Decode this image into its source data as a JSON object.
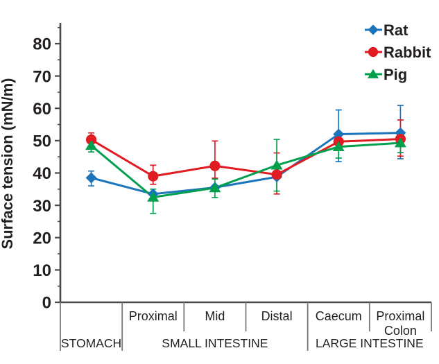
{
  "chart_data": {
    "type": "line",
    "title": "",
    "ylabel": "Surface tension (mN/m)",
    "ylim": [
      0,
      80
    ],
    "ytick_step": 10,
    "ytick_minor_step": 5,
    "grid": false,
    "legend_position": "top-right",
    "categories": [
      "Stomach",
      "Proximal",
      "Mid",
      "Distal",
      "Caecum",
      "Proximal Colon"
    ],
    "x_sub_labels": [
      "",
      "Proximal",
      "Mid",
      "Distal",
      "Caecum",
      "Proximal\nColon"
    ],
    "x_groups": [
      {
        "label": "STOMACH",
        "start": 0,
        "end": 1
      },
      {
        "label": "SMALL INTESTINE",
        "start": 1,
        "end": 4
      },
      {
        "label": "LARGE INTESTINE",
        "start": 4,
        "end": 6
      }
    ],
    "series": [
      {
        "name": "Rat",
        "color": "#1C75BB",
        "marker": "diamond",
        "values": [
          38.5,
          33.5,
          35.5,
          38.8,
          52.0,
          52.4
        ],
        "err_up": [
          2.1,
          0,
          0,
          0,
          7.5,
          8.5
        ],
        "err_down": [
          2.5,
          0,
          0,
          0,
          8.5,
          8.0
        ]
      },
      {
        "name": "Rabbit",
        "color": "#E11B22",
        "marker": "circle",
        "values": [
          50.3,
          39.0,
          42.2,
          39.5,
          49.7,
          50.5
        ],
        "err_up": [
          2.1,
          3.4,
          7.7,
          6.7,
          2.0,
          5.9
        ],
        "err_down": [
          2.0,
          2.5,
          3.8,
          6.0,
          2.0,
          5.3
        ]
      },
      {
        "name": "Pig",
        "color": "#00A04D",
        "marker": "triangle",
        "values": [
          48.5,
          32.5,
          35.4,
          42.4,
          48.1,
          49.3
        ],
        "err_up": [
          1.5,
          2.5,
          2.7,
          8.0,
          2.0,
          2.0
        ],
        "err_down": [
          2.0,
          5.0,
          3.0,
          8.0,
          3.5,
          3.0
        ]
      }
    ],
    "colors": {
      "axis": "#4A4A4C",
      "separator": "#77787B",
      "text": "#231F20"
    }
  }
}
